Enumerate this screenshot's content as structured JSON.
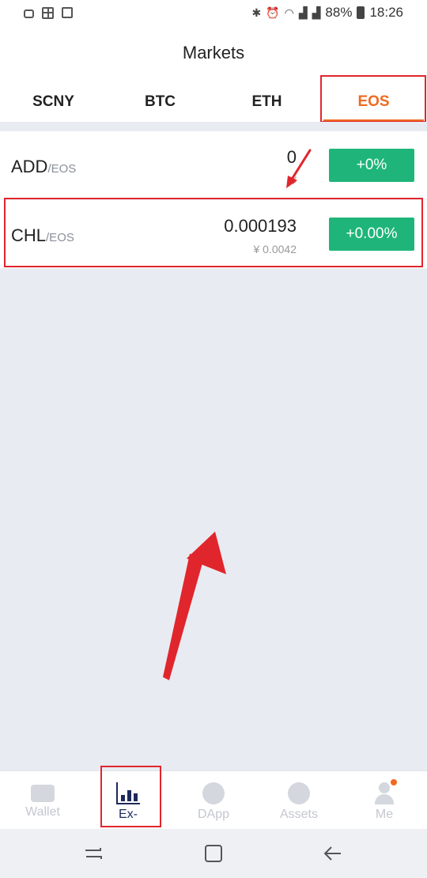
{
  "status_bar": {
    "battery": "88%",
    "time": "18:26"
  },
  "header": {
    "title": "Markets"
  },
  "tabs": [
    {
      "label": "SCNY",
      "active": false
    },
    {
      "label": "BTC",
      "active": false
    },
    {
      "label": "ETH",
      "active": false
    },
    {
      "label": "EOS",
      "active": true
    }
  ],
  "markets": [
    {
      "base": "ADD",
      "quote": "/EOS",
      "price": "0",
      "cny": "¥",
      "change": "+0%"
    },
    {
      "base": "CHL",
      "quote": "/EOS",
      "price": "0.000193",
      "cny": "¥ 0.0042",
      "change": "+0.00%"
    }
  ],
  "bottom_nav": [
    {
      "label": "Wallet",
      "icon": "wallet-icon",
      "active": false
    },
    {
      "label": "Ex-",
      "icon": "exchange-chart-icon",
      "active": true
    },
    {
      "label": "DApp",
      "icon": "compass-icon",
      "active": false
    },
    {
      "label": "Assets",
      "icon": "pie-chart-icon",
      "active": false
    },
    {
      "label": "Me",
      "icon": "person-icon",
      "active": false
    }
  ],
  "colors": {
    "accent": "#f06a1f",
    "positive": "#1fb57a",
    "annotation": "#e0262c",
    "nav_active": "#1d2a5a"
  }
}
